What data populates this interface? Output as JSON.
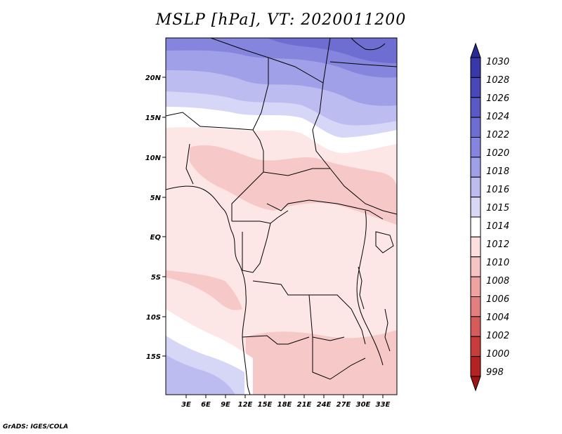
{
  "title": "MSLP [hPa], VT: 2020011200",
  "credit": "GrADS: IGES/COLA",
  "lat_ticks": [
    "20N",
    "15N",
    "10N",
    "5N",
    "EQ",
    "5S",
    "10S",
    "15S"
  ],
  "lon_ticks": [
    "3E",
    "6E",
    "9E",
    "12E",
    "15E",
    "18E",
    "21E",
    "24E",
    "27E",
    "30E",
    "33E"
  ],
  "colorbar": {
    "labels": [
      "1030",
      "1028",
      "1026",
      "1024",
      "1022",
      "1020",
      "1018",
      "1016",
      "1015",
      "1014",
      "1012",
      "1010",
      "1008",
      "1006",
      "1004",
      "1002",
      "1000",
      "998"
    ],
    "colors": [
      "#2a2a94",
      "#3838a8",
      "#4848b8",
      "#5a5ac6",
      "#6e6ed2",
      "#8585de",
      "#a0a0e8",
      "#bcbcf0",
      "#d8d8f6",
      "#ffffff",
      "#fce0e0",
      "#f7c4c4",
      "#eea2a2",
      "#e37f7f",
      "#d65c5c",
      "#c83c3c",
      "#b52222",
      "#9f1414"
    ]
  },
  "colors": {
    "frame": "#000000",
    "border": "#000000"
  }
}
